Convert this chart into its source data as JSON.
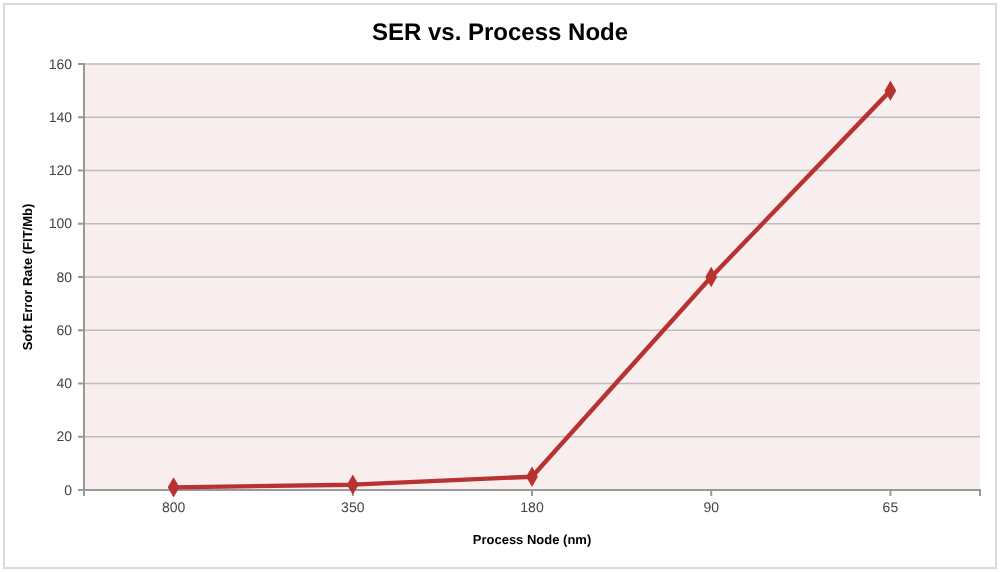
{
  "chart_data": {
    "type": "line",
    "title": "SER vs. Process Node",
    "xlabel": "Process Node (nm)",
    "ylabel": "Soft Error Rate (FIT/Mb)",
    "categories": [
      "800",
      "350",
      "180",
      "90",
      "65"
    ],
    "series": [
      {
        "color": "#b83232",
        "values": [
          1,
          2,
          5,
          80,
          150
        ]
      }
    ],
    "ylim": [
      0,
      160
    ],
    "yticks": [
      0,
      20,
      40,
      60,
      80,
      100,
      120,
      140,
      160
    ],
    "grid": "y",
    "marker": "diamond"
  }
}
